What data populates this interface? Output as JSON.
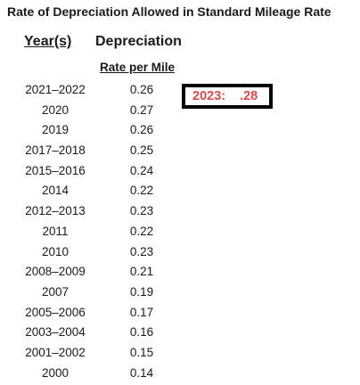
{
  "title": "Rate of Depreciation Allowed in Standard Mileage Rate",
  "columns": {
    "year": "Year(s)",
    "depreciation": "Depreciation",
    "rate_per_mile": "Rate per Mile"
  },
  "rows": [
    {
      "year": "2021–2022",
      "rate": "0.26"
    },
    {
      "year": "2020",
      "rate": "0.27"
    },
    {
      "year": "2019",
      "rate": "0.26"
    },
    {
      "year": "2017–2018",
      "rate": "0.25"
    },
    {
      "year": "2015–2016",
      "rate": "0.24"
    },
    {
      "year": "2014",
      "rate": "0.22"
    },
    {
      "year": "2012–2013",
      "rate": "0.23"
    },
    {
      "year": "2011",
      "rate": "0.22"
    },
    {
      "year": "2010",
      "rate": "0.23"
    },
    {
      "year": "2008–2009",
      "rate": "0.21"
    },
    {
      "year": "2007",
      "rate": "0.19"
    },
    {
      "year": "2005–2006",
      "rate": "0.17"
    },
    {
      "year": "2003–2004",
      "rate": "0.16"
    },
    {
      "year": "2001–2002",
      "rate": "0.15"
    },
    {
      "year": "2000",
      "rate": "0.14"
    }
  ],
  "callout": {
    "year": "2023:",
    "rate": ".28",
    "color": "#e04848"
  }
}
